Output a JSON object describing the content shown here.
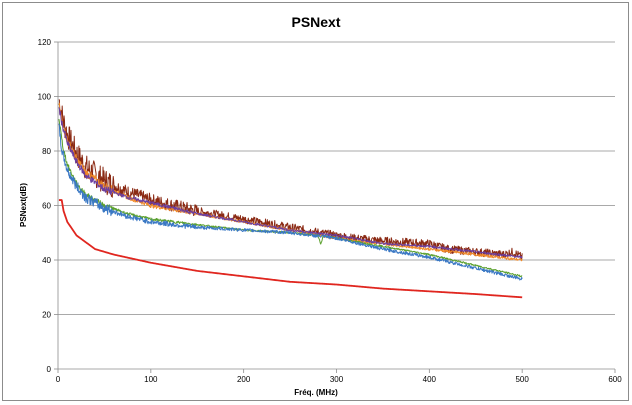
{
  "chart_data": {
    "type": "line",
    "title": "PSNext",
    "xlabel": "Fréq. (MHz)",
    "ylabel": "PSNext(dB)",
    "xlim": [
      0,
      600
    ],
    "ylim": [
      0,
      120
    ],
    "xticks": [
      0,
      100,
      200,
      300,
      400,
      500,
      600
    ],
    "yticks": [
      0,
      20,
      40,
      60,
      80,
      100,
      120
    ],
    "grid": "horizontal",
    "legend": "none",
    "series": [
      {
        "color": "#8b2a14",
        "noise": 3.0,
        "x": [
          1,
          5,
          10,
          20,
          30,
          50,
          75,
          100,
          150,
          200,
          250,
          300,
          320,
          350,
          400,
          420,
          450,
          480,
          490,
          500
        ],
        "y": [
          99,
          92,
          86,
          79,
          74,
          69,
          65,
          62,
          58,
          55,
          52,
          49,
          48,
          47,
          46,
          44,
          43,
          42,
          43,
          41
        ]
      },
      {
        "color": "#f08a2a",
        "noise": 1.0,
        "x": [
          1,
          5,
          10,
          20,
          30,
          50,
          75,
          100,
          150,
          200,
          250,
          300,
          350,
          400,
          450,
          500
        ],
        "y": [
          97,
          90,
          84,
          77,
          72,
          67,
          63,
          60,
          57,
          54,
          51,
          48,
          46,
          44,
          42,
          40
        ]
      },
      {
        "color": "#6b3fa0",
        "noise": 0.8,
        "x": [
          1,
          5,
          10,
          20,
          30,
          50,
          75,
          100,
          150,
          200,
          250,
          300,
          350,
          400,
          450,
          500
        ],
        "y": [
          96,
          89,
          83,
          76,
          71,
          66,
          63,
          61,
          57,
          54,
          51,
          49,
          46,
          45,
          43,
          41
        ]
      },
      {
        "color": "#5aa02c",
        "noise": 0.6,
        "x": [
          1,
          5,
          10,
          20,
          30,
          50,
          75,
          100,
          150,
          200,
          250,
          280,
          283,
          286,
          300,
          350,
          400,
          450,
          500
        ],
        "y": [
          92,
          82,
          75,
          68,
          64,
          60,
          57,
          55,
          53,
          51,
          50,
          49,
          46,
          49,
          48,
          45,
          42,
          38,
          34
        ]
      },
      {
        "color": "#3a78c4",
        "noise": 1.2,
        "x": [
          1,
          3,
          5,
          10,
          20,
          30,
          50,
          75,
          100,
          150,
          200,
          250,
          300,
          350,
          400,
          450,
          500
        ],
        "y": [
          89,
          83,
          79,
          73,
          67,
          63,
          59,
          56,
          54,
          52,
          51,
          50,
          48,
          44,
          41,
          37,
          33
        ]
      },
      {
        "color": "#e0261f",
        "noise": 0,
        "x": [
          1,
          4,
          6,
          10,
          20,
          40,
          60,
          100,
          150,
          200,
          250,
          300,
          350,
          400,
          450,
          500
        ],
        "y": [
          62,
          62,
          58,
          54,
          49,
          44,
          42,
          39,
          36,
          34,
          32,
          31,
          29.5,
          28.5,
          27.5,
          26.3
        ]
      }
    ]
  }
}
